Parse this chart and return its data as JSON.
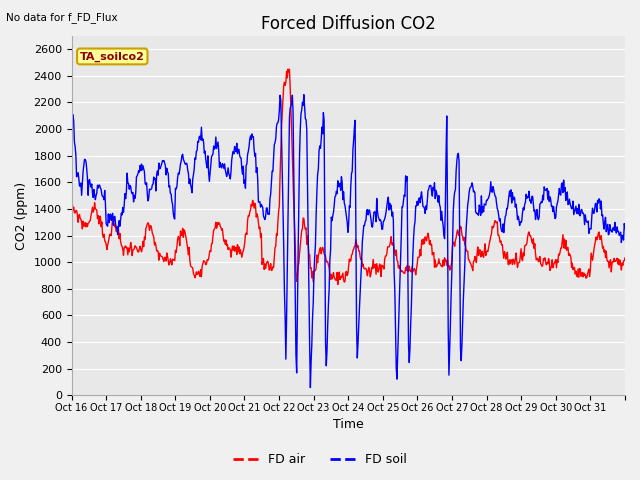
{
  "title": "Forced Diffusion CO2",
  "no_data_text": "No data for f_FD_Flux",
  "annotation_text": "TA_soilco2",
  "xlabel": "Time",
  "ylabel": "CO2 (ppm)",
  "ylim": [
    0,
    2700
  ],
  "yticks": [
    0,
    200,
    400,
    600,
    800,
    1000,
    1200,
    1400,
    1600,
    1800,
    2000,
    2200,
    2400,
    2600
  ],
  "xtick_labels": [
    "Oct 16",
    "Oct 17",
    "Oct 18",
    "Oct 19",
    "Oct 20",
    "Oct 21",
    "Oct 22",
    "Oct 23",
    "Oct 24",
    "Oct 25",
    "Oct 26",
    "Oct 27",
    "Oct 28",
    "Oct 29",
    "Oct 30",
    "Oct 31"
  ],
  "color_red": "#ff0000",
  "color_blue": "#0000ff",
  "legend_red": "FD air",
  "legend_blue": "FD soil",
  "fig_bg_color": "#f0f0f0",
  "plot_bg_color": "#e8e8e8",
  "grid_color": "#ffffff",
  "title_fontsize": 12,
  "label_fontsize": 9,
  "tick_fontsize": 8,
  "line_width": 1.0,
  "n_days": 16,
  "pts_per_day": 48
}
